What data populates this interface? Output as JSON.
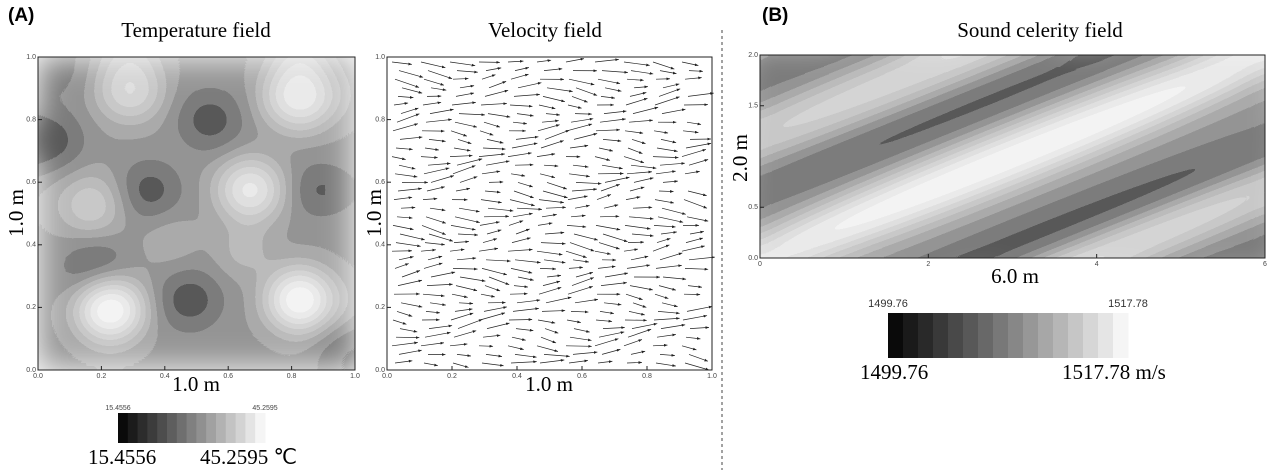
{
  "panel_a": {
    "label": "(A)",
    "temperature": {
      "title": "Temperature field",
      "x_label": "1.0 m",
      "y_label": "1.0 m",
      "xticks": [
        "0.0",
        "0.2",
        "0.4",
        "0.6",
        "0.8",
        "1.0"
      ],
      "yticks": [
        "0.0",
        "0.2",
        "0.4",
        "0.6",
        "0.8",
        "1.0"
      ],
      "colorbar": {
        "min_small": "15.4556",
        "max_small": "45.2595",
        "min": "15.4556",
        "max": "45.2595 ℃"
      }
    },
    "velocity": {
      "title": "Velocity field",
      "x_label": "1.0 m",
      "y_label": "1.0 m",
      "xticks": [
        "0.0",
        "0.2",
        "0.4",
        "0.6",
        "0.8",
        "1.0"
      ],
      "yticks": [
        "0.0",
        "0.2",
        "0.4",
        "0.6",
        "0.8",
        "1.0"
      ]
    }
  },
  "panel_b": {
    "label": "(B)",
    "sound": {
      "title": "Sound celerity field",
      "x_label": "6.0 m",
      "y_label": "2.0 m",
      "xticks": [
        "0",
        "2",
        "4",
        "6"
      ],
      "yticks": [
        "0.0",
        "0.5",
        "1.5",
        "2.0"
      ],
      "colorbar": {
        "min_small": "1499.76",
        "max_small": "1517.78",
        "min": "1499.76",
        "max": "1517.78 m/s"
      }
    }
  }
}
